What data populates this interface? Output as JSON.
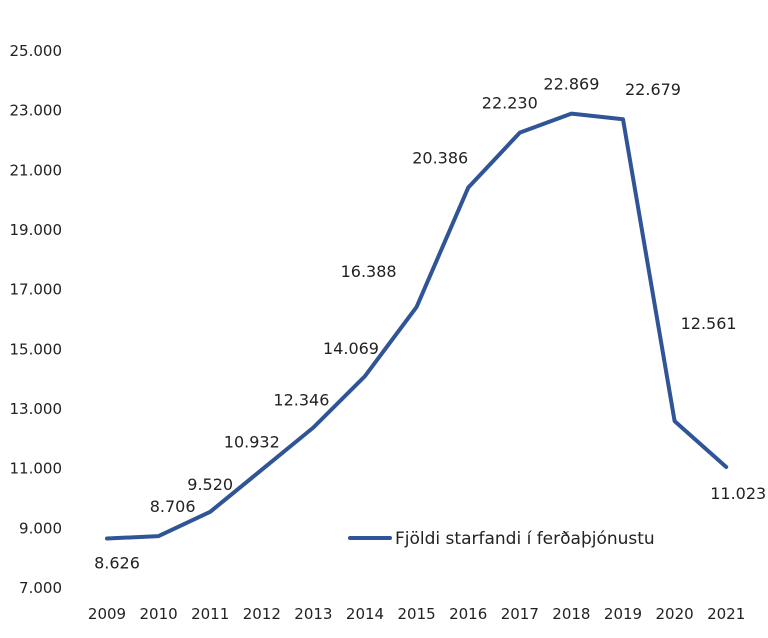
{
  "chart_data": {
    "type": "line",
    "title": "",
    "xlabel": "",
    "ylabel": "",
    "categories": [
      "2009",
      "2010",
      "2011",
      "2012",
      "2013",
      "2014",
      "2015",
      "2016",
      "2017",
      "2018",
      "2019",
      "2020",
      "2021"
    ],
    "series": [
      {
        "name": "Fjöldi starfandi í ferðaþjónustu",
        "color": "#2f5597",
        "values": [
          8626,
          8706,
          9520,
          10932,
          12346,
          14069,
          16388,
          20386,
          22230,
          22869,
          22679,
          12561,
          11023
        ],
        "labels": [
          "8.626",
          "8.706",
          "9.520",
          "10.932",
          "12.346",
          "14.069",
          "16.388",
          "20.386",
          "22.230",
          "22.869",
          "22.679",
          "12.561",
          "11.023"
        ]
      }
    ],
    "ylim": [
      7000,
      25000
    ],
    "yticks": [
      7000,
      9000,
      11000,
      13000,
      15000,
      17000,
      19000,
      21000,
      23000,
      25000
    ],
    "ytick_labels": [
      "7.000",
      "9.000",
      "11.000",
      "13.000",
      "15.000",
      "17.000",
      "19.000",
      "21.000",
      "23.000",
      "25.000"
    ],
    "grid": false,
    "legend_position": "bottom-center"
  }
}
